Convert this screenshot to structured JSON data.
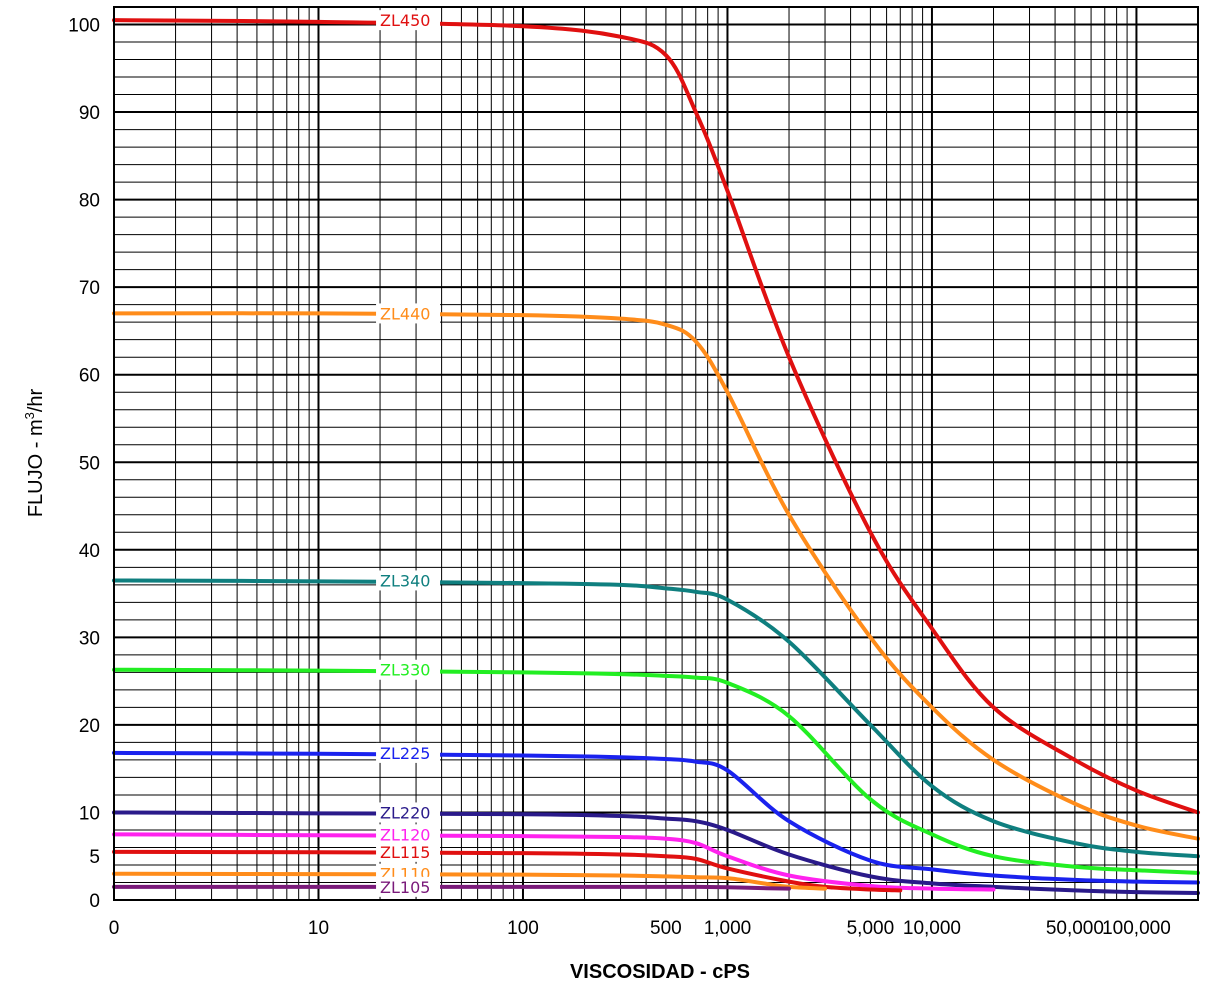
{
  "chart_data": {
    "type": "line",
    "title": "",
    "xlabel": "VISCOSIDAD - cPS",
    "ylabel": "FLUJO - m³/hr",
    "ylabel_main": "FLUJO - m",
    "ylabel_sup": "3",
    "ylabel_tail": "/hr",
    "grid": true,
    "xscale": "log",
    "xlim": [
      1,
      200000
    ],
    "ylim": [
      0,
      102
    ],
    "y_ticks": [
      {
        "value": 0,
        "label": "0"
      },
      {
        "value": 5,
        "label": "5"
      },
      {
        "value": 10,
        "label": "10"
      },
      {
        "value": 20,
        "label": "20"
      },
      {
        "value": 30,
        "label": "30"
      },
      {
        "value": 40,
        "label": "40"
      },
      {
        "value": 50,
        "label": "50"
      },
      {
        "value": 60,
        "label": "60"
      },
      {
        "value": 70,
        "label": "70"
      },
      {
        "value": 80,
        "label": "80"
      },
      {
        "value": 90,
        "label": "90"
      },
      {
        "value": 100,
        "label": "100"
      }
    ],
    "x_ticks": [
      {
        "value": 1,
        "label": "0"
      },
      {
        "value": 10,
        "label": "10"
      },
      {
        "value": 100,
        "label": "100"
      },
      {
        "value": 500,
        "label": "500"
      },
      {
        "value": 1000,
        "label": "1,000"
      },
      {
        "value": 5000,
        "label": "5,000"
      },
      {
        "value": 10000,
        "label": "10,000"
      },
      {
        "value": 50000,
        "label": "50,000"
      },
      {
        "value": 100000,
        "label": "100,000"
      }
    ],
    "series": [
      {
        "name": "ZL450",
        "color": "#e01010",
        "x": [
          1,
          10,
          100,
          300,
          500,
          700,
          1000,
          2000,
          5000,
          10000,
          20000,
          50000,
          100000,
          200000
        ],
        "y": [
          100.5,
          100.3,
          99.8,
          98.6,
          96.5,
          90,
          81,
          62,
          42,
          31,
          22,
          16,
          12.5,
          10
        ]
      },
      {
        "name": "ZL440",
        "color": "#ff8c1a",
        "x": [
          1,
          10,
          100,
          300,
          500,
          700,
          1000,
          2000,
          5000,
          10000,
          20000,
          50000,
          100000,
          200000
        ],
        "y": [
          67,
          67,
          66.8,
          66.4,
          65.7,
          63.8,
          58,
          44,
          30,
          22,
          16,
          11,
          8.5,
          7
        ]
      },
      {
        "name": "ZL340",
        "color": "#0f7f7f",
        "x": [
          1,
          10,
          100,
          300,
          500,
          700,
          1000,
          2000,
          5000,
          10000,
          20000,
          50000,
          100000,
          200000
        ],
        "y": [
          36.5,
          36.4,
          36.2,
          36,
          35.6,
          35.2,
          34.3,
          29.5,
          20,
          13,
          9,
          6.5,
          5.5,
          5
        ]
      },
      {
        "name": "ZL330",
        "color": "#22ee22",
        "x": [
          1,
          10,
          100,
          300,
          500,
          700,
          1000,
          2000,
          5000,
          10000,
          20000,
          50000,
          100000,
          200000
        ],
        "y": [
          26.3,
          26.2,
          26,
          25.8,
          25.6,
          25.4,
          24.8,
          21,
          11.5,
          7.5,
          5,
          3.8,
          3.4,
          3.1
        ]
      },
      {
        "name": "ZL225",
        "color": "#1a22ee",
        "x": [
          1,
          10,
          100,
          300,
          500,
          700,
          1000,
          2000,
          5000,
          10000,
          20000,
          50000,
          100000,
          200000
        ],
        "y": [
          16.8,
          16.7,
          16.5,
          16.3,
          16.1,
          15.8,
          14.8,
          9,
          4.5,
          3.5,
          2.8,
          2.3,
          2.1,
          2.0
        ]
      },
      {
        "name": "ZL220",
        "color": "#2a1a8a",
        "x": [
          1,
          10,
          100,
          300,
          500,
          700,
          1000,
          2000,
          5000,
          10000,
          20000,
          50000,
          100000,
          200000
        ],
        "y": [
          10,
          9.9,
          9.8,
          9.6,
          9.3,
          9,
          8,
          5.2,
          2.7,
          1.9,
          1.5,
          1.1,
          0.9,
          0.8
        ]
      },
      {
        "name": "ZL120",
        "color": "#ff22ee",
        "x": [
          1,
          10,
          100,
          300,
          500,
          700,
          1000,
          2000,
          5000,
          10000,
          20000
        ],
        "y": [
          7.5,
          7.4,
          7.3,
          7.2,
          7.0,
          6.5,
          5,
          2.8,
          1.6,
          1.3,
          1.2
        ]
      },
      {
        "name": "ZL115",
        "color": "#e01010",
        "x": [
          1,
          10,
          100,
          300,
          500,
          700,
          1000,
          2000,
          3000,
          5000,
          7000
        ],
        "y": [
          5.5,
          5.45,
          5.35,
          5.2,
          5.0,
          4.7,
          3.6,
          2.1,
          1.5,
          1.2,
          1.1
        ]
      },
      {
        "name": "ZL110",
        "color": "#ff8c1a",
        "x": [
          1,
          10,
          100,
          300,
          500,
          700,
          1000,
          1500,
          2000,
          3000
        ],
        "y": [
          3.0,
          2.95,
          2.9,
          2.8,
          2.7,
          2.6,
          2.5,
          1.9,
          1.5,
          1.3
        ]
      },
      {
        "name": "ZL105",
        "color": "#7a1a7a",
        "x": [
          1,
          10,
          100,
          300,
          500,
          700,
          1000,
          1500,
          2000
        ],
        "y": [
          1.5,
          1.5,
          1.5,
          1.5,
          1.5,
          1.5,
          1.45,
          1.35,
          1.3
        ]
      }
    ]
  }
}
